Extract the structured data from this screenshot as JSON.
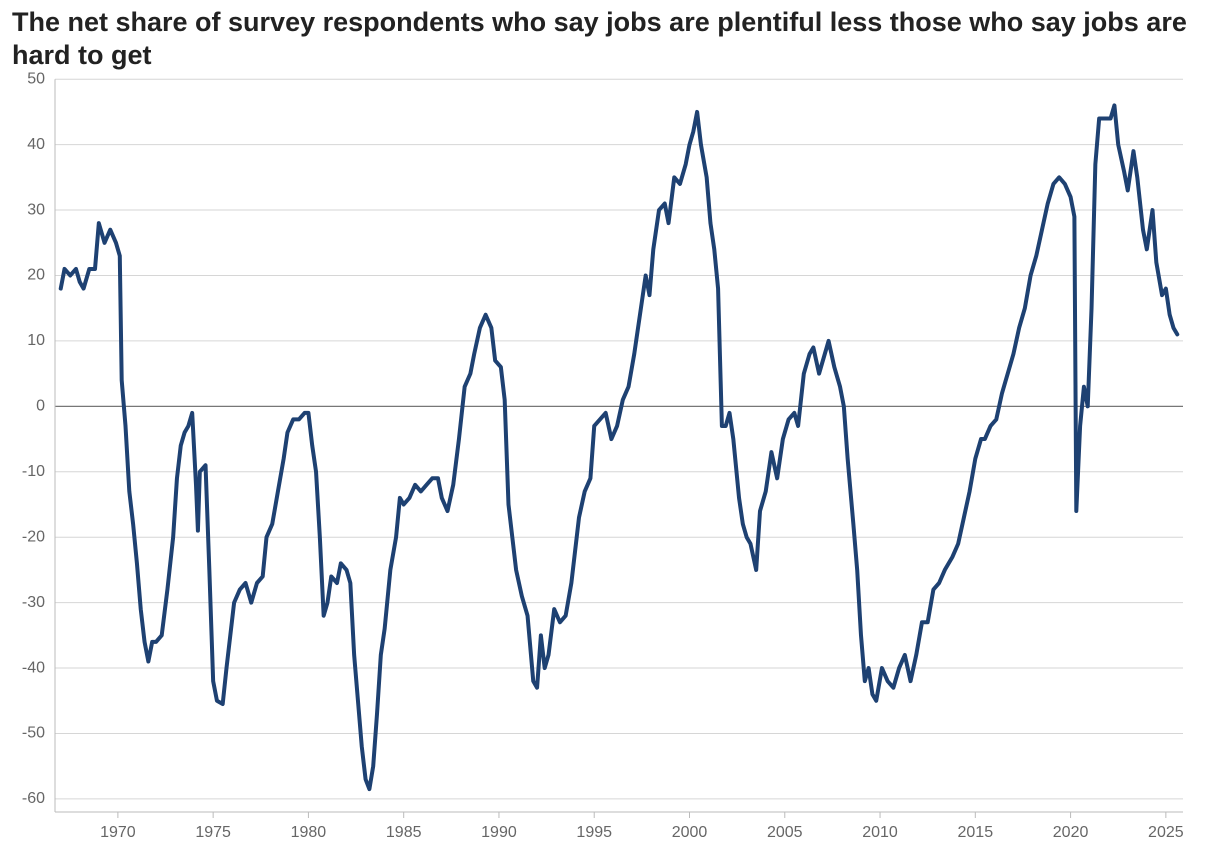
{
  "chart_data": {
    "type": "line",
    "title": "The net share of survey respondents who say jobs are plentiful less those who say jobs are hard to get",
    "color": "#1e4172",
    "xlim": [
      1966.7,
      2025.9
    ],
    "xticks": [
      1970,
      1975,
      1980,
      1985,
      1990,
      1995,
      2000,
      2005,
      2010,
      2015,
      2020,
      2025
    ],
    "ylim": [
      -62,
      50
    ],
    "yticks": [
      -60,
      -50,
      -40,
      -30,
      -20,
      -10,
      0,
      10,
      20,
      30,
      40,
      50
    ],
    "grid": true,
    "x": [
      1967.0,
      1967.2,
      1967.5,
      1967.8,
      1968.0,
      1968.2,
      1968.5,
      1968.8,
      1969.0,
      1969.3,
      1969.6,
      1969.9,
      1970.1,
      1970.2,
      1970.4,
      1970.6,
      1970.8,
      1971.0,
      1971.2,
      1971.4,
      1971.6,
      1971.8,
      1972.0,
      1972.3,
      1972.6,
      1972.9,
      1973.1,
      1973.3,
      1973.5,
      1973.7,
      1973.9,
      1974.1,
      1974.2,
      1974.3,
      1974.6,
      1974.8,
      1975.0,
      1975.2,
      1975.5,
      1975.7,
      1975.9,
      1976.1,
      1976.4,
      1976.7,
      1977.0,
      1977.3,
      1977.6,
      1977.8,
      1978.1,
      1978.4,
      1978.7,
      1978.9,
      1979.2,
      1979.5,
      1979.8,
      1980.0,
      1980.2,
      1980.4,
      1980.6,
      1980.8,
      1981.0,
      1981.2,
      1981.5,
      1981.7,
      1982.0,
      1982.2,
      1982.4,
      1982.6,
      1982.8,
      1983.0,
      1983.2,
      1983.4,
      1983.6,
      1983.8,
      1984.0,
      1984.3,
      1984.6,
      1984.8,
      1985.0,
      1985.3,
      1985.6,
      1985.9,
      1986.2,
      1986.5,
      1986.8,
      1987.0,
      1987.3,
      1987.6,
      1987.9,
      1988.2,
      1988.5,
      1988.7,
      1989.0,
      1989.3,
      1989.6,
      1989.8,
      1990.1,
      1990.3,
      1990.5,
      1990.7,
      1990.9,
      1991.2,
      1991.5,
      1991.8,
      1992.0,
      1992.2,
      1992.4,
      1992.6,
      1992.9,
      1993.2,
      1993.5,
      1993.8,
      1994.0,
      1994.2,
      1994.5,
      1994.8,
      1995.0,
      1995.3,
      1995.6,
      1995.9,
      1996.2,
      1996.5,
      1996.8,
      1997.1,
      1997.4,
      1997.7,
      1997.9,
      1998.1,
      1998.4,
      1998.7,
      1998.9,
      1999.2,
      1999.5,
      1999.8,
      2000.0,
      2000.2,
      2000.4,
      2000.6,
      2000.9,
      2001.1,
      2001.3,
      2001.5,
      2001.7,
      2001.9,
      2002.1,
      2002.3,
      2002.6,
      2002.8,
      2003.0,
      2003.2,
      2003.5,
      2003.7,
      2004.0,
      2004.3,
      2004.6,
      2004.9,
      2005.2,
      2005.5,
      2005.7,
      2006.0,
      2006.3,
      2006.5,
      2006.8,
      2007.0,
      2007.3,
      2007.6,
      2007.9,
      2008.1,
      2008.3,
      2008.6,
      2008.8,
      2009.0,
      2009.2,
      2009.4,
      2009.6,
      2009.8,
      2010.1,
      2010.4,
      2010.7,
      2011.0,
      2011.3,
      2011.6,
      2011.9,
      2012.2,
      2012.5,
      2012.8,
      2013.1,
      2013.4,
      2013.8,
      2014.1,
      2014.4,
      2014.7,
      2015.0,
      2015.3,
      2015.5,
      2015.8,
      2016.1,
      2016.4,
      2016.7,
      2017.0,
      2017.3,
      2017.6,
      2017.9,
      2018.2,
      2018.5,
      2018.8,
      2019.1,
      2019.4,
      2019.7,
      2020.0,
      2020.2,
      2020.3,
      2020.5,
      2020.7,
      2020.9,
      2021.1,
      2021.3,
      2021.5,
      2021.8,
      2022.1,
      2022.3,
      2022.5,
      2022.8,
      2023.0,
      2023.3,
      2023.5,
      2023.8,
      2024.0,
      2024.3,
      2024.5,
      2024.8,
      2025.0,
      2025.2,
      2025.4,
      2025.6
    ],
    "values": [
      18,
      21,
      20,
      21,
      19,
      18,
      21,
      21,
      28,
      25,
      27,
      25,
      23,
      4,
      -3,
      -13,
      -18,
      -24,
      -31,
      -36,
      -39,
      -36,
      -36,
      -35,
      -28,
      -20,
      -11,
      -6,
      -4,
      -3,
      -1,
      -12,
      -19,
      -10,
      -9,
      -25,
      -42,
      -45,
      -45.5,
      -40,
      -35,
      -30,
      -28,
      -27,
      -30,
      -27,
      -26,
      -20,
      -18,
      -13,
      -8,
      -4,
      -2,
      -2,
      -1,
      -1,
      -6,
      -10,
      -20,
      -32,
      -30,
      -26,
      -27,
      -24,
      -25,
      -27,
      -38,
      -45,
      -52,
      -57,
      -58.5,
      -55,
      -47,
      -38,
      -34,
      -25,
      -20,
      -14,
      -15,
      -14,
      -12,
      -13,
      -12,
      -11,
      -11,
      -14,
      -16,
      -12,
      -5,
      3,
      5,
      8,
      12,
      14,
      12,
      7,
      6,
      1,
      -15,
      -20,
      -25,
      -29,
      -32,
      -42,
      -43,
      -35,
      -40,
      -38,
      -31,
      -33,
      -32,
      -27,
      -22,
      -17,
      -13,
      -11,
      -3,
      -2,
      -1,
      -5,
      -3,
      1,
      3,
      8,
      14,
      20,
      17,
      24,
      30,
      31,
      28,
      35,
      34,
      37,
      40,
      42,
      45,
      40,
      35,
      28,
      24,
      18,
      -3,
      -3,
      -1,
      -5,
      -14,
      -18,
      -20,
      -21,
      -25,
      -16,
      -13,
      -7,
      -11,
      -5,
      -2,
      -1,
      -3,
      5,
      8,
      9,
      5,
      7,
      10,
      6,
      3,
      0,
      -8,
      -18,
      -25,
      -35,
      -42,
      -40,
      -44,
      -45,
      -40,
      -42,
      -43,
      -40,
      -38,
      -42,
      -38,
      -33,
      -33,
      -28,
      -27,
      -25,
      -23,
      -21,
      -17,
      -13,
      -8,
      -5,
      -5,
      -3,
      -2,
      2,
      5,
      8,
      12,
      15,
      20,
      23,
      27,
      31,
      34,
      35,
      34,
      32,
      29,
      -16,
      -3,
      3,
      0,
      15,
      37,
      44,
      44,
      44,
      46,
      40,
      36,
      33,
      39,
      35,
      27,
      24,
      30,
      22,
      17,
      18,
      14,
      12,
      11
    ]
  }
}
